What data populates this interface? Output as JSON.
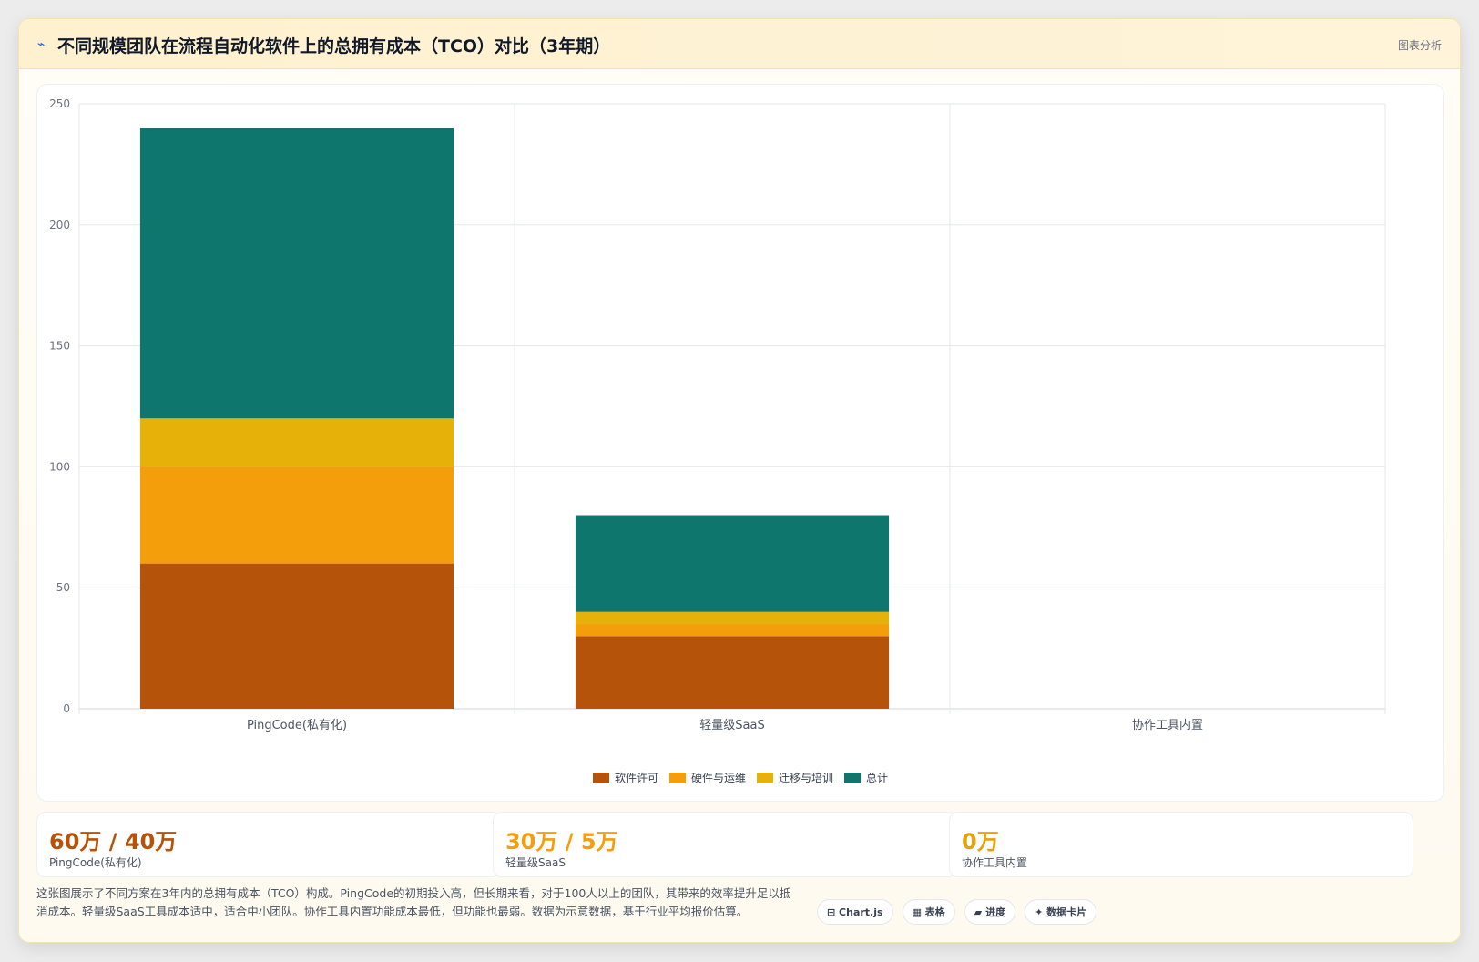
{
  "header": {
    "icon": "⌁",
    "title": "不同规模团队在流程自动化软件上的总拥有成本（TCO）对比（3年期）",
    "tag": "图表分析"
  },
  "chart_data": {
    "type": "bar",
    "stacked": true,
    "categories": [
      "PingCode(私有化)",
      "轻量级SaaS",
      "协作工具内置"
    ],
    "series": [
      {
        "name": "软件许可",
        "color": "#b5530b",
        "values": [
          60,
          30,
          0
        ]
      },
      {
        "name": "硬件与运维",
        "color": "#f59e0b",
        "values": [
          40,
          5,
          0
        ]
      },
      {
        "name": "迁移与培训",
        "color": "#e6b20a",
        "values": [
          20,
          5,
          0
        ]
      },
      {
        "name": "总计",
        "color": "#0f766e",
        "values": [
          120,
          40,
          0
        ]
      }
    ],
    "ylim": [
      0,
      250
    ],
    "yticks": [
      0,
      50,
      100,
      150,
      200,
      250
    ],
    "grid": true,
    "legend_position": "bottom"
  },
  "kpis": [
    {
      "value": "60万 / 40万",
      "label": "PingCode(私有化)",
      "color": "#b5530b"
    },
    {
      "value": "30万 / 5万",
      "label": "轻量级SaaS",
      "color": "#f59e0b"
    },
    {
      "value": "0万",
      "label": "协作工具内置",
      "color": "#e6a20a"
    }
  ],
  "footer": {
    "text": "这张图展示了不同方案在3年内的总拥有成本（TCO）构成。PingCode的初期投入高，但长期来看，对于100人以上的团队，其带来的效率提升足以抵消成本。轻量级SaaS工具成本适中，适合中小团队。协作工具内置功能成本最低，但功能也最弱。数据为示意数据，基于行业平均报价估算。"
  },
  "badges": [
    "⊟ Chart.js",
    "▦ 表格",
    "▰ 进度",
    "✦ 数据卡片"
  ]
}
